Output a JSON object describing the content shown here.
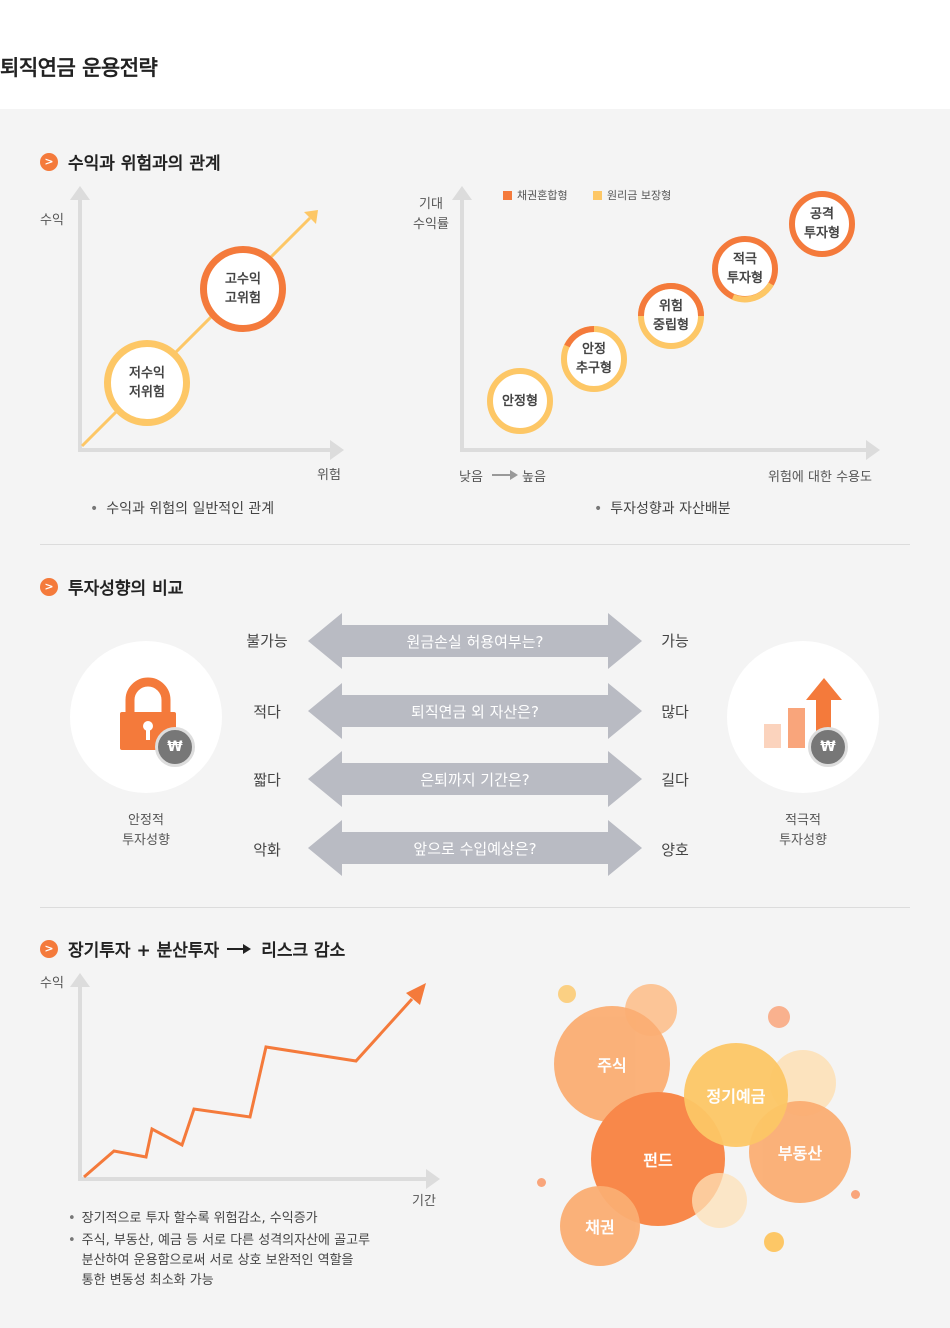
{
  "page_title": "퇴직연금 운용전략",
  "section1": {
    "heading": "수익과 위험과의 관계",
    "left": {
      "ylabel": "수익",
      "xlabel": "위험",
      "circle_low": "저수익\n저위험",
      "circle_high": "고수익\n고위험",
      "caption": "수익과 위험의 일반적인 관계"
    },
    "right": {
      "ylabel": "기대\n수익률",
      "legend_a": "채권혼합형",
      "legend_b": "원리금 보장형",
      "x_low": "낮음",
      "x_high": "높음",
      "xlabel": "위험에 대한 수용도",
      "types": [
        "안정형",
        "안정\n추구형",
        "위험\n중립형",
        "적극\n투자형",
        "공격\n투자형"
      ],
      "caption": "투자성향과 자산배분"
    },
    "colors": {
      "orange": "#f47a3b",
      "yellow": "#fdc766"
    }
  },
  "section2": {
    "heading": "투자성향의 비교",
    "left_label": "안정적\n투자성향",
    "right_label": "적극적\n투자성향",
    "rows": [
      {
        "left": "불가능",
        "question": "원금손실 허용여부는?",
        "right": "가능"
      },
      {
        "left": "적다",
        "question": "퇴직연금 외 자산은?",
        "right": "많다"
      },
      {
        "left": "짧다",
        "question": "은퇴까지 기간은?",
        "right": "길다"
      },
      {
        "left": "악화",
        "question": "앞으로 수입예상은?",
        "right": "양호"
      }
    ],
    "won_symbol": "₩"
  },
  "section3": {
    "heading_a": "장기투자 + 분산투자",
    "heading_b": "리스크 감소",
    "ylabel": "수익",
    "xlabel": "기간",
    "notes": [
      "장기적으로 투자 할수록 위험감소, 수익증가",
      "주식, 부동산, 예금 등 서로 다른 성격의자산에 골고루\n분산하여 운용함으로써 서로 상호 보완적인 역할을\n통한 변동성 최소화 가능"
    ],
    "bubbles": [
      "주식",
      "정기예금",
      "펀드",
      "부동산",
      "채권"
    ]
  }
}
